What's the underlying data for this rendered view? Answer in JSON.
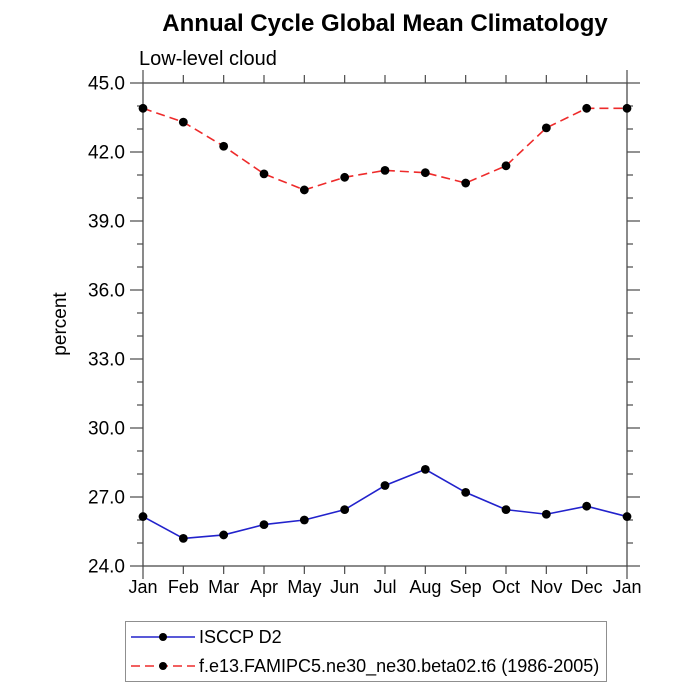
{
  "chart_data": {
    "type": "line",
    "title": "Annual Cycle Global Mean Climatology",
    "subtitle": "Low-level cloud",
    "ylabel": "percent",
    "x_categories": [
      "Jan",
      "Feb",
      "Mar",
      "Apr",
      "May",
      "Jun",
      "Jul",
      "Aug",
      "Sep",
      "Oct",
      "Nov",
      "Dec",
      "Jan"
    ],
    "ylim": [
      24.0,
      45.0
    ],
    "ytick_major_step": 3.0,
    "ytick_minor_step": 1.0,
    "ytick_labels": [
      "24.0",
      "27.0",
      "30.0",
      "33.0",
      "36.0",
      "39.0",
      "42.0",
      "45.0"
    ],
    "grid": false,
    "legend_position": "bottom",
    "series": [
      {
        "name": "ISCCP D2",
        "color": "#2222cc",
        "line_style": "solid",
        "marker": "filled-circle",
        "marker_color": "#000000",
        "values": [
          26.15,
          25.2,
          25.35,
          25.8,
          26.0,
          26.45,
          27.5,
          28.2,
          27.2,
          26.45,
          26.25,
          26.6,
          26.15
        ]
      },
      {
        "name": "f.e13.FAMIPC5.ne30_ne30.beta02.t6 (1986-2005)",
        "color": "#ee2b2b",
        "line_style": "dashed",
        "marker": "filled-circle",
        "marker_color": "#000000",
        "values": [
          43.9,
          43.3,
          42.25,
          41.05,
          40.35,
          40.9,
          41.2,
          41.1,
          40.65,
          41.4,
          43.05,
          43.9,
          43.9
        ]
      }
    ]
  }
}
